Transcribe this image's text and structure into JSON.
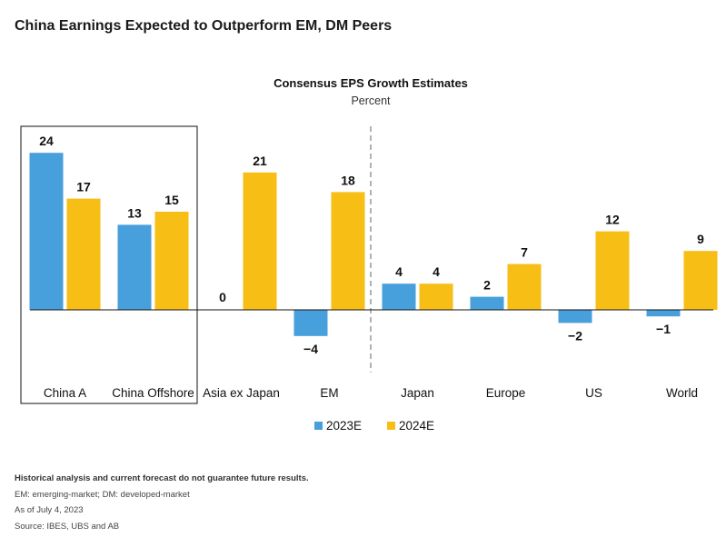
{
  "page_title": "China Earnings Expected to Outperform EM, DM Peers",
  "chart_data": {
    "type": "bar",
    "title": "Consensus EPS Growth Estimates",
    "subtitle": "Percent",
    "categories": [
      "China A",
      "China Offshore",
      "Asia ex Japan",
      "EM",
      "Japan",
      "Europe",
      "US",
      "World"
    ],
    "series": [
      {
        "name": "2023E",
        "color": "#479fdb",
        "values": [
          24,
          13,
          0,
          -4,
          4,
          2,
          -2,
          -1
        ]
      },
      {
        "name": "2024E",
        "color": "#f7be16",
        "values": [
          17,
          15,
          21,
          18,
          4,
          7,
          12,
          9
        ]
      }
    ],
    "value_labels": [
      [
        "24",
        "13",
        "0",
        "−4",
        "4",
        "2",
        "−2",
        "−1"
      ],
      [
        "17",
        "15",
        "21",
        "18",
        "4",
        "7",
        "12",
        "9"
      ]
    ],
    "legend_position": "bottom-center",
    "grid": false,
    "highlight_box": [
      "China A",
      "China Offshore"
    ],
    "divider_after": "EM"
  },
  "footnotes": {
    "disclaimer": "Historical analysis and current forecast do not guarantee future results.",
    "abbreviations": "EM: emerging-market; DM: developed-market",
    "as_of": "As of July 4, 2023",
    "source": "Source: IBES, UBS and AB"
  }
}
